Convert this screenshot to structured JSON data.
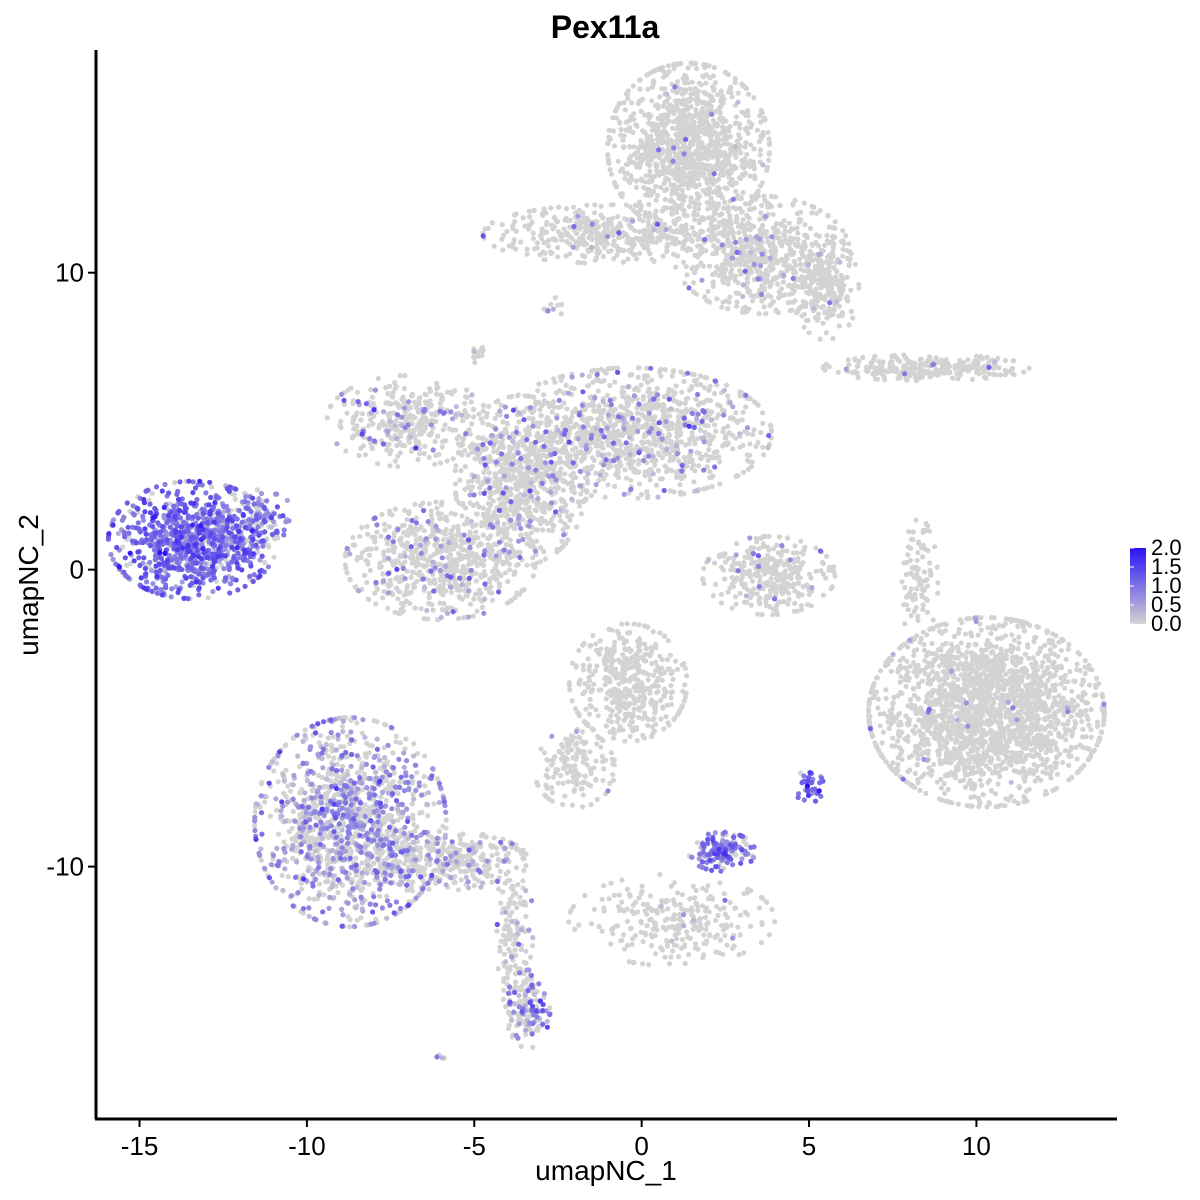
{
  "chart_data": {
    "type": "scatter",
    "title": "Pex11a",
    "xlabel": "umapNC_1",
    "ylabel": "umapNC_2",
    "xlim": [
      -16.3,
      14.2
    ],
    "ylim": [
      -18.5,
      17.5
    ],
    "xticks": [
      -15,
      -10,
      -5,
      0,
      5,
      10
    ],
    "xtick_labels": [
      "-15",
      "-10",
      "-5",
      "0",
      "5",
      "10"
    ],
    "yticks": [
      -10,
      0,
      10
    ],
    "ytick_labels": [
      "-10",
      "0",
      "10"
    ],
    "grid": false,
    "color_scale": {
      "low_color": "#d3d3d3",
      "high_color": "#2a12f5",
      "min": 0.0,
      "max": 2.0,
      "tick_values": [
        0.0,
        0.5,
        1.0,
        1.5,
        2.0
      ],
      "tick_labels": [
        "0.0",
        "0.5",
        "1.0",
        "1.5",
        "2.0"
      ],
      "legend_placement": "right"
    },
    "clusters": [
      {
        "id": "c_left_blue",
        "center": [
          -13.4,
          1.0
        ],
        "spread": [
          1.15,
          0.9
        ],
        "n": 900,
        "expr_frac": 0.85,
        "expr_mean": 1.0
      },
      {
        "id": "c_left_arm",
        "center": [
          -11.6,
          1.7
        ],
        "spread": [
          0.6,
          0.45
        ],
        "n": 110,
        "expr_frac": 0.6,
        "expr_mean": 0.8
      },
      {
        "id": "c_bottom_left",
        "center": [
          -8.7,
          -8.5
        ],
        "spread": [
          1.3,
          1.6
        ],
        "n": 1300,
        "expr_frac": 0.45,
        "expr_mean": 0.6
      },
      {
        "id": "c_bottom_left_tail",
        "center": [
          -5.8,
          -9.8
        ],
        "spread": [
          1.1,
          0.45
        ],
        "n": 300,
        "expr_frac": 0.2,
        "expr_mean": 0.6
      },
      {
        "id": "c_bottom_stalk",
        "center": [
          -3.8,
          -12.2
        ],
        "spread": [
          0.25,
          1.3
        ],
        "n": 140,
        "expr_frac": 0.1,
        "expr_mean": 0.6
      },
      {
        "id": "c_bottom_blob",
        "center": [
          -3.4,
          -14.8
        ],
        "spread": [
          0.3,
          0.6
        ],
        "n": 130,
        "expr_frac": 0.5,
        "expr_mean": 0.7
      },
      {
        "id": "c_mid_left_lobe",
        "center": [
          -6.0,
          0.3
        ],
        "spread": [
          1.3,
          0.9
        ],
        "n": 700,
        "expr_frac": 0.1,
        "expr_mean": 0.7
      },
      {
        "id": "c_mid_upper_left",
        "center": [
          -7.0,
          5.0
        ],
        "spread": [
          1.1,
          0.7
        ],
        "n": 350,
        "expr_frac": 0.12,
        "expr_mean": 0.7
      },
      {
        "id": "c_mid_center",
        "center": [
          -3.6,
          3.0
        ],
        "spread": [
          0.9,
          1.3
        ],
        "n": 700,
        "expr_frac": 0.08,
        "expr_mean": 0.7
      },
      {
        "id": "c_mid_right",
        "center": [
          -0.3,
          4.6
        ],
        "spread": [
          1.9,
          1.0
        ],
        "n": 1100,
        "expr_frac": 0.1,
        "expr_mean": 0.7
      },
      {
        "id": "c_top_main",
        "center": [
          1.4,
          14.2
        ],
        "spread": [
          1.1,
          1.3
        ],
        "n": 1200,
        "expr_frac": 0.01,
        "expr_mean": 0.7
      },
      {
        "id": "c_top_arm_left",
        "center": [
          -1.0,
          11.3
        ],
        "spread": [
          1.7,
          0.45
        ],
        "n": 450,
        "expr_frac": 0.03,
        "expr_mean": 0.6
      },
      {
        "id": "c_top_arm_right",
        "center": [
          3.6,
          10.6
        ],
        "spread": [
          1.2,
          0.9
        ],
        "n": 650,
        "expr_frac": 0.04,
        "expr_mean": 0.6
      },
      {
        "id": "c_top_far_right",
        "center": [
          5.5,
          9.5
        ],
        "spread": [
          0.45,
          0.8
        ],
        "n": 200,
        "expr_frac": 0.03,
        "expr_mean": 0.6
      },
      {
        "id": "c_right_strip",
        "center": [
          8.5,
          6.8
        ],
        "spread": [
          1.4,
          0.2
        ],
        "n": 260,
        "expr_frac": 0.02,
        "expr_mean": 0.6
      },
      {
        "id": "c_center_small",
        "center": [
          3.8,
          -0.2
        ],
        "spread": [
          0.9,
          0.6
        ],
        "n": 320,
        "expr_frac": 0.05,
        "expr_mean": 0.6
      },
      {
        "id": "c_center_lower",
        "center": [
          -0.4,
          -3.8
        ],
        "spread": [
          0.8,
          0.9
        ],
        "n": 420,
        "expr_frac": 0.0,
        "expr_mean": 0.0
      },
      {
        "id": "c_center_lower_arm",
        "center": [
          -2.0,
          -6.7
        ],
        "spread": [
          0.55,
          0.6
        ],
        "n": 150,
        "expr_frac": 0.02,
        "expr_mean": 0.5
      },
      {
        "id": "c_center_bottom",
        "center": [
          0.9,
          -11.8
        ],
        "spread": [
          1.4,
          0.7
        ],
        "n": 260,
        "expr_frac": 0.02,
        "expr_mean": 0.6
      },
      {
        "id": "c_purple_small",
        "center": [
          2.4,
          -9.5
        ],
        "spread": [
          0.45,
          0.3
        ],
        "n": 150,
        "expr_frac": 0.75,
        "expr_mean": 0.9
      },
      {
        "id": "c_purple_tiny",
        "center": [
          5.0,
          -7.3
        ],
        "spread": [
          0.2,
          0.25
        ],
        "n": 35,
        "expr_frac": 0.9,
        "expr_mean": 1.2
      },
      {
        "id": "c_right_big",
        "center": [
          10.3,
          -4.8
        ],
        "spread": [
          1.6,
          1.45
        ],
        "n": 2000,
        "expr_frac": 0.01,
        "expr_mean": 0.7
      },
      {
        "id": "c_right_stalk",
        "center": [
          8.3,
          -0.5
        ],
        "spread": [
          0.25,
          1.0
        ],
        "n": 90,
        "expr_frac": 0.0,
        "expr_mean": 0.0
      },
      {
        "id": "c_stray_1",
        "center": [
          -4.9,
          7.2
        ],
        "spread": [
          0.15,
          0.15
        ],
        "n": 12,
        "expr_frac": 0.2,
        "expr_mean": 0.5
      },
      {
        "id": "c_stray_2",
        "center": [
          -2.7,
          8.8
        ],
        "spread": [
          0.15,
          0.2
        ],
        "n": 10,
        "expr_frac": 0.2,
        "expr_mean": 0.5
      },
      {
        "id": "c_stray_3",
        "center": [
          -6.0,
          -16.4
        ],
        "spread": [
          0.1,
          0.1
        ],
        "n": 5,
        "expr_frac": 0.4,
        "expr_mean": 0.6
      }
    ]
  }
}
